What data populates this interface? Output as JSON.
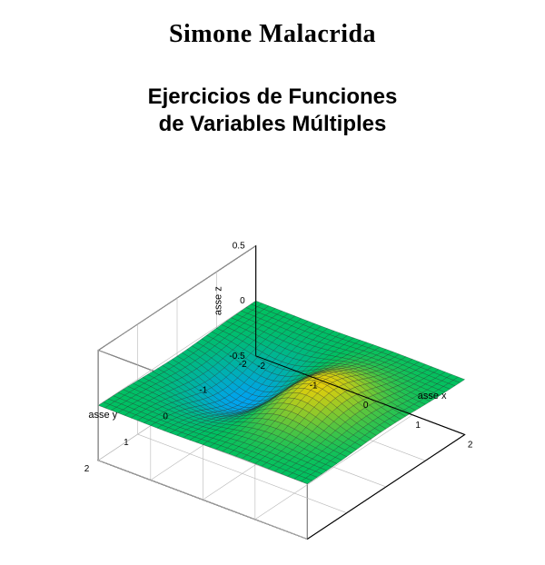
{
  "author": "Simone Malacrida",
  "author_fontsize": 28,
  "title_line1": "Ejercicios de Funciones",
  "title_line2": "de Variables Múltiples",
  "title_fontsize": 24,
  "surface_chart": {
    "type": "3d-surface",
    "function": "sin-like ridge/valley surface",
    "x_label": "asse x",
    "y_label": "asse y",
    "z_label": "asse z",
    "label_fontsize": 11,
    "tick_fontsize": 10,
    "xlim": [
      -2,
      2
    ],
    "ylim": [
      -2,
      2
    ],
    "zlim": [
      -0.5,
      0.5
    ],
    "x_ticks": [
      -2,
      -1,
      0,
      1,
      2
    ],
    "y_ticks": [
      -2,
      -1,
      0,
      1,
      2
    ],
    "z_ticks": [
      -0.5,
      0,
      0.5
    ],
    "background_color": "#ffffff",
    "box_line_color": "#000000",
    "grid_color": "#b8b8b8",
    "mesh_line_color": "#202020",
    "colormap": {
      "min_color": "#1818b0",
      "q1_color": "#00a0ff",
      "mid_color": "#00c060",
      "q3_color": "#ffd000",
      "max_color": "#c01010"
    },
    "view": {
      "azimuth_deg": -37,
      "elevation_deg": 30
    },
    "grid_n": 33
  }
}
